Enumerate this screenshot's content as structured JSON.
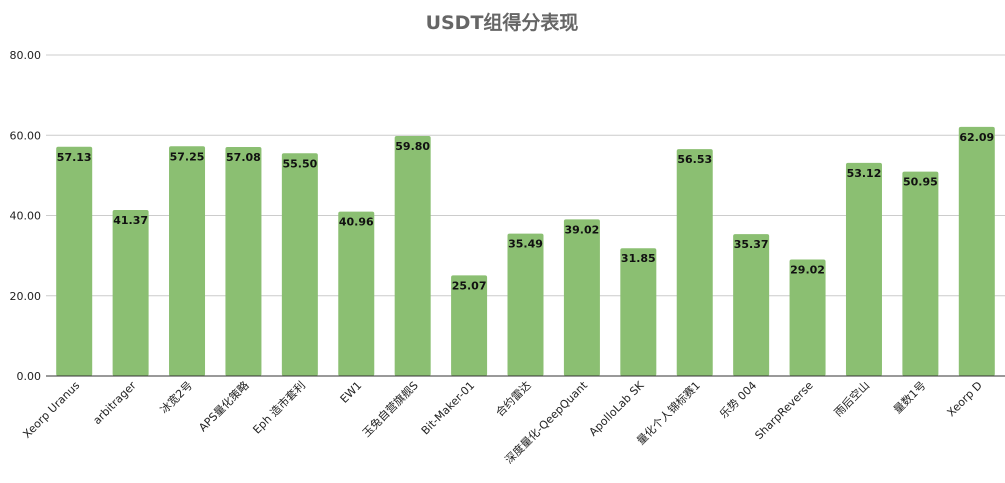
{
  "chart_data": {
    "type": "bar",
    "title": "USDT组得分表现",
    "categories": [
      "Xeorp Uranus",
      "arbitrager",
      "冰宽2号",
      "APS量化策略",
      "Eph 造市套利",
      "EW1",
      "玉兔自营旗舰S",
      "Bit-Maker-01",
      "合约雷达",
      "深度量化-QeepQuant",
      "ApolloLab SK",
      "量化个人锦标赛1",
      "乐势 004",
      "SharpReverse",
      "雨后空山",
      "量数1号",
      "Xeorp D"
    ],
    "values": [
      57.13,
      41.37,
      57.25,
      57.08,
      55.5,
      40.96,
      59.8,
      25.07,
      35.49,
      39.02,
      31.85,
      56.53,
      35.37,
      29.02,
      53.12,
      50.95,
      62.09
    ],
    "value_labels": [
      "57.13",
      "41.37",
      "57.25",
      "57.08",
      "55.50",
      "40.96",
      "59.80",
      "25.07",
      "35.49",
      "39.02",
      "31.85",
      "56.53",
      "35.37",
      "29.02",
      "53.12",
      "50.95",
      "62.09"
    ],
    "y_ticks": [
      "0.00",
      "20.00",
      "40.00",
      "60.00",
      "80.00"
    ],
    "y_tick_values": [
      0,
      20,
      40,
      60,
      80
    ],
    "ylim": [
      0,
      80
    ],
    "xlabel": "",
    "ylabel": "",
    "grid": true,
    "legend": "none",
    "bar_color": "#8bbf72",
    "gridline_color": "#cccccc",
    "axis_color": "#333333"
  }
}
